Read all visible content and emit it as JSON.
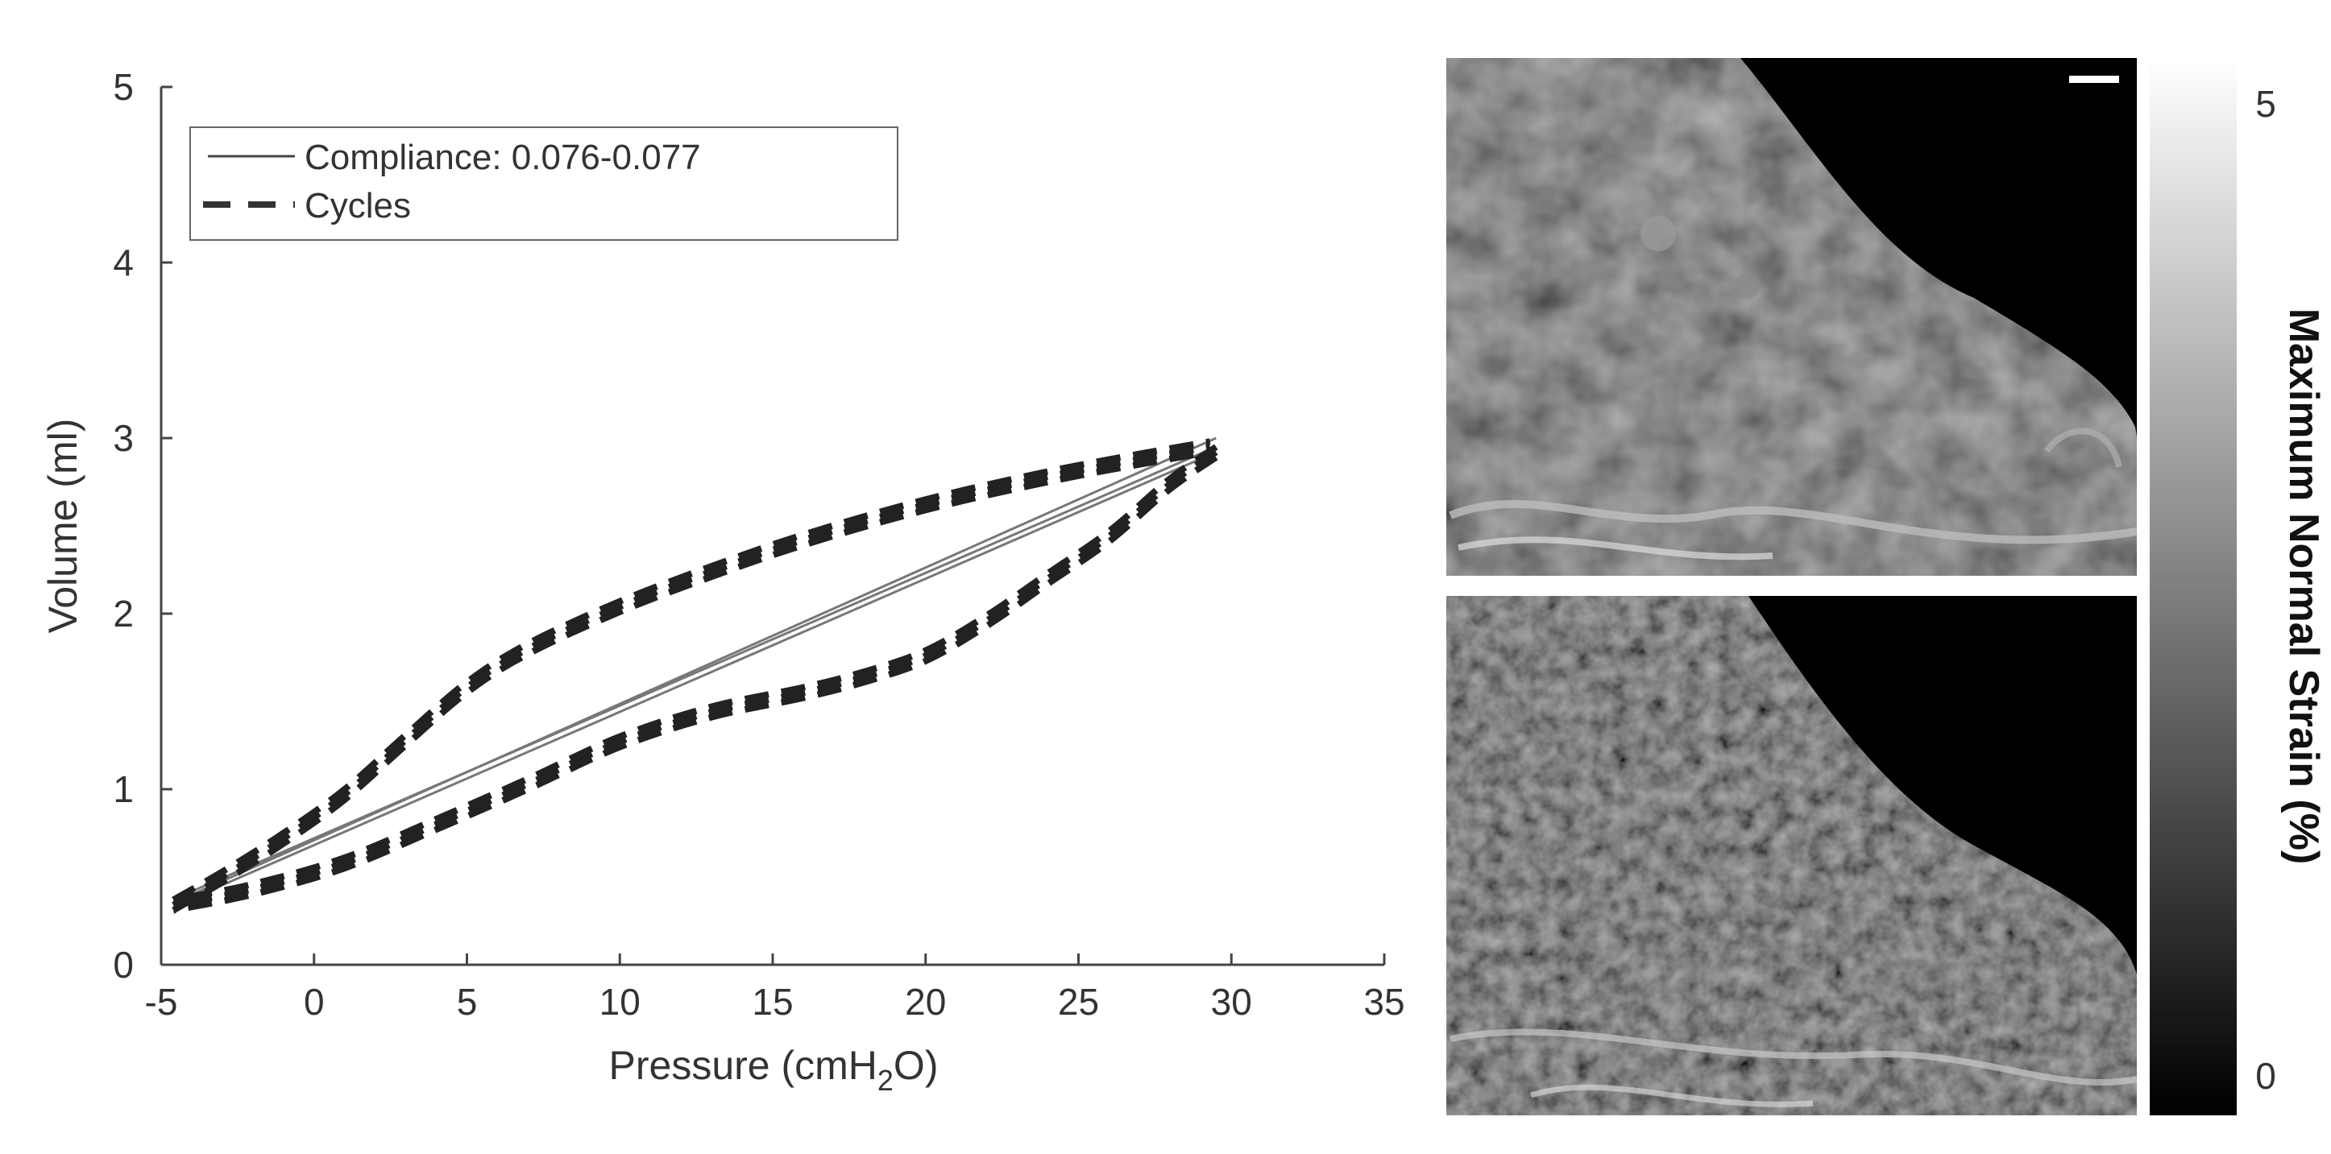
{
  "chart_data": [
    {
      "type": "line",
      "xlabel": "Pressure (cmH",
      "xlabel_sub": "2",
      "xlabel_tail": "O)",
      "ylabel": "Volume (ml)",
      "xlim": [
        -5,
        35
      ],
      "ylim": [
        0,
        5
      ],
      "x_ticks": [
        "-5",
        "0",
        "5",
        "10",
        "15",
        "20",
        "25",
        "30",
        "35"
      ],
      "y_ticks": [
        "0",
        "1",
        "2",
        "3",
        "4",
        "5"
      ],
      "grid": false,
      "legend": {
        "placement": "top-left",
        "entries": [
          {
            "label": "Compliance: 0.076-0.077",
            "style": "solid"
          },
          {
            "label": "Cycles",
            "style": "dashed"
          }
        ]
      },
      "series": [
        {
          "name": "Compliance: 0.076-0.077",
          "style": "solid",
          "color": "#777777",
          "lines": [
            {
              "x": [
                -4.5,
                29.5
              ],
              "y": [
                0.36,
                3.0
              ]
            },
            {
              "x": [
                -4.5,
                29.5
              ],
              "y": [
                0.38,
                2.95
              ]
            },
            {
              "x": [
                -4.5,
                29.5
              ],
              "y": [
                0.34,
                2.92
              ]
            }
          ]
        },
        {
          "name": "Cycles",
          "style": "dashed",
          "color": "#222222",
          "inflation": {
            "x": [
              -4.6,
              -3,
              -1,
              1,
              3,
              5,
              7,
              10,
              13,
              16,
              20,
              24,
              27,
              29.3
            ],
            "y": [
              0.34,
              0.5,
              0.72,
              0.97,
              1.28,
              1.58,
              1.8,
              2.04,
              2.24,
              2.42,
              2.62,
              2.78,
              2.88,
              2.95
            ]
          },
          "deflation": {
            "x": [
              29.5,
              28,
              26,
              24,
              22,
              20,
              18,
              16,
              13,
              10,
              7,
              4,
              1,
              -2,
              -4.6
            ],
            "y": [
              2.92,
              2.74,
              2.44,
              2.2,
              1.96,
              1.76,
              1.64,
              1.55,
              1.44,
              1.27,
              1.03,
              0.8,
              0.58,
              0.43,
              0.34
            ]
          },
          "offsets": [
            -0.03,
            0,
            0.03
          ]
        }
      ]
    },
    {
      "type": "heatmap",
      "panels": 2,
      "colorbar": {
        "label": "Maximum Normal Strain (%)",
        "min": "0",
        "max": "5",
        "colors": [
          "#000000",
          "#ffffff"
        ]
      }
    }
  ]
}
